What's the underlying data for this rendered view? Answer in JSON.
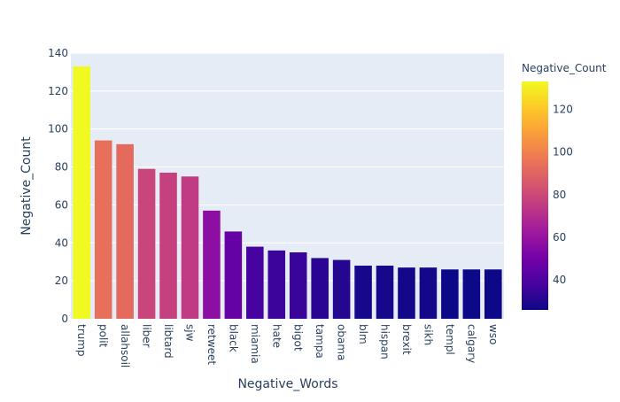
{
  "chart_data": {
    "type": "bar",
    "xlabel": "Negative_Words",
    "ylabel": "Negative_Count",
    "categories": [
      "trump",
      "polit",
      "allahsoil",
      "liber",
      "libtard",
      "sjw",
      "retweet",
      "black",
      "miamia",
      "hate",
      "bigot",
      "tampa",
      "obama",
      "blm",
      "hispan",
      "brexit",
      "sikh",
      "templ",
      "calgary",
      "wso"
    ],
    "values": [
      133,
      94,
      92,
      79,
      77,
      75,
      57,
      46,
      38,
      36,
      35,
      32,
      31,
      28,
      28,
      27,
      27,
      26,
      26,
      26
    ],
    "ylim": [
      0,
      140
    ],
    "yticks": [
      0,
      20,
      40,
      60,
      80,
      100,
      120,
      140
    ],
    "grid": true,
    "colorbar": {
      "title": "Negative_Count",
      "ticks": [
        40,
        60,
        80,
        100,
        120
      ],
      "range": [
        26,
        133
      ],
      "colorscale": "plasma"
    },
    "plot_bgcolor": "#e5ecf6"
  }
}
